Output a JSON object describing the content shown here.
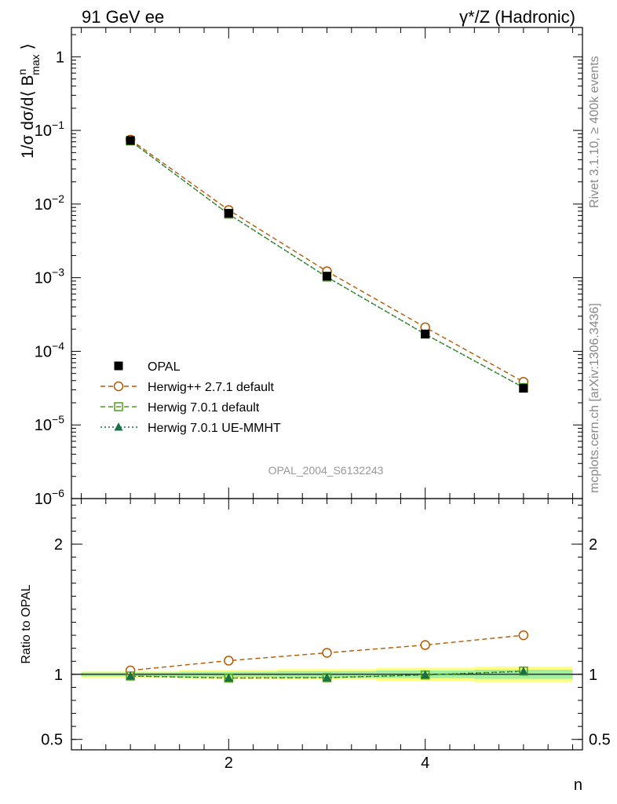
{
  "header": {
    "left_label": "91 GeV ee",
    "right_label": "γ*/Z (Hadronic)"
  },
  "side_labels": {
    "rivet": "Rivet 3.1.10, ≥ 400k events",
    "mcplots": "mcplots.cern.ch [arXiv:1306.3436]"
  },
  "analysis_label": "OPAL_2004_S6132243",
  "x_axis_label": "n",
  "colors": {
    "opal": "#000000",
    "herwigpp": "#b35900",
    "herwig701": "#4d9f1c",
    "herwig701ue": "#1a7046",
    "band_outer": "#ffff80",
    "band_inner": "#a0f0a0"
  },
  "chart_data": [
    {
      "type": "line",
      "name": "main",
      "ylabel": "1/σ dσ/d⟨ B^n_max ⟩",
      "yscale": "log",
      "ylim": [
        1e-06,
        2.5
      ],
      "xlim": [
        0.4,
        5.6
      ],
      "x_ticks": [
        2,
        4
      ],
      "y_tick_labels": [
        {
          "value": 1,
          "base": "1",
          "exp": ""
        },
        {
          "value": 0.1,
          "base": "10",
          "exp": "−1"
        },
        {
          "value": 0.01,
          "base": "10",
          "exp": "−2"
        },
        {
          "value": 0.001,
          "base": "10",
          "exp": "−3"
        },
        {
          "value": 0.0001,
          "base": "10",
          "exp": "−4"
        },
        {
          "value": 1e-05,
          "base": "10",
          "exp": "−5"
        },
        {
          "value": 1e-06,
          "base": "10",
          "exp": "−6"
        }
      ],
      "x": [
        1,
        2,
        3,
        4,
        5
      ],
      "series": [
        {
          "name": "OPAL",
          "key": "opal",
          "marker": "filled-square",
          "line": "none",
          "values": [
            0.073,
            0.0075,
            0.00105,
            0.000172,
            3.15e-05
          ]
        },
        {
          "name": "Herwig++ 2.7.1 default",
          "key": "herwigpp",
          "marker": "open-circle",
          "line": "dashed",
          "values": [
            0.075,
            0.0083,
            0.00122,
            0.000212,
            3.85e-05
          ]
        },
        {
          "name": "Herwig 7.0.1 default",
          "key": "herwig701",
          "marker": "open-square",
          "line": "dashed",
          "values": [
            0.072,
            0.0073,
            0.00102,
            0.000171,
            3.22e-05
          ]
        },
        {
          "name": "Herwig 7.0.1 UE-MMHT",
          "key": "herwig701ue",
          "marker": "filled-triangle",
          "line": "dotted",
          "values": [
            0.072,
            0.0073,
            0.00102,
            0.000171,
            3.23e-05
          ]
        }
      ]
    },
    {
      "type": "line",
      "name": "ratio",
      "ylabel": "Ratio to OPAL",
      "xlim": [
        0.4,
        5.6
      ],
      "ylim": [
        0.42,
        2.35
      ],
      "x_ticks": [
        2,
        4
      ],
      "y_ticks": [
        0.5,
        1,
        2
      ],
      "y_tick_labels": [
        "0.5",
        "1",
        "2"
      ],
      "x": [
        1,
        2,
        3,
        4,
        5
      ],
      "band_inner": [
        0.015,
        0.02,
        0.025,
        0.03,
        0.035
      ],
      "band_outer": [
        0.025,
        0.035,
        0.04,
        0.05,
        0.06
      ],
      "series": [
        {
          "name": "Herwig++ 2.7.1 default",
          "key": "herwigpp",
          "marker": "open-circle",
          "line": "dashed",
          "values": [
            1.03,
            1.105,
            1.165,
            1.225,
            1.3
          ]
        },
        {
          "name": "Herwig 7.0.1 default",
          "key": "herwig701",
          "marker": "open-square",
          "line": "dashed",
          "values": [
            0.987,
            0.971,
            0.974,
            0.995,
            1.025
          ]
        },
        {
          "name": "Herwig 7.0.1 UE-MMHT",
          "key": "herwig701ue",
          "marker": "filled-triangle",
          "line": "dotted",
          "values": [
            0.987,
            0.972,
            0.975,
            0.996,
            1.022
          ]
        }
      ]
    }
  ]
}
